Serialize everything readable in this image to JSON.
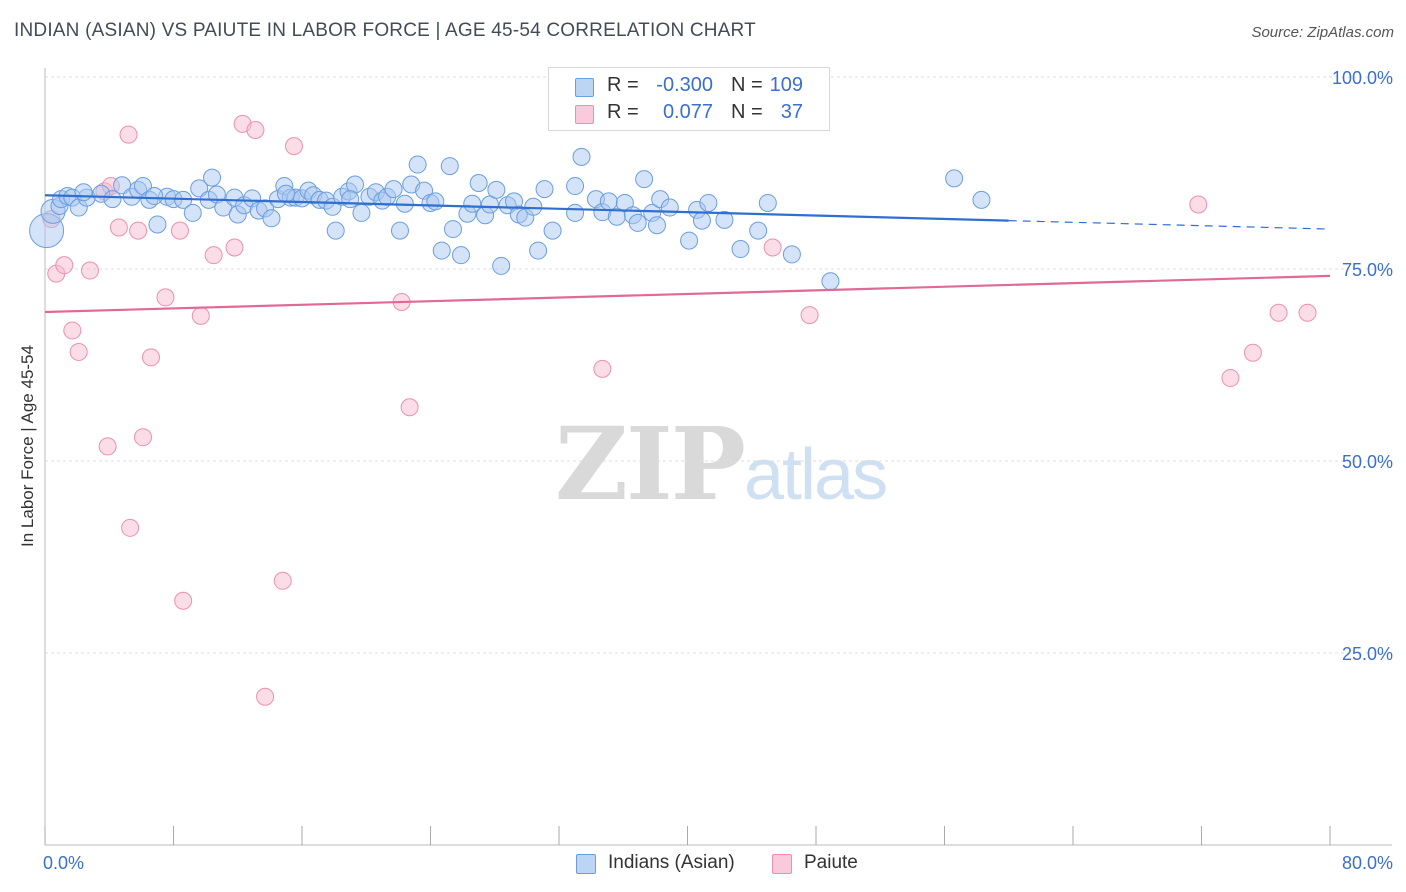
{
  "title": "INDIAN (ASIAN) VS PAIUTE IN LABOR FORCE | AGE 45-54 CORRELATION CHART",
  "source": "Source: ZipAtlas.com",
  "watermark": {
    "zip": "ZIP",
    "atlas": "atlas"
  },
  "legend": {
    "rows": [
      {
        "r_label": "R =",
        "r_value": "-0.300",
        "n_label": "N =",
        "n_value": "109"
      },
      {
        "r_label": "R =",
        "r_value": "0.077",
        "n_label": "N =",
        "n_value": "37"
      }
    ]
  },
  "bottom_legend": [
    "Indians (Asian)",
    "Paiute"
  ],
  "chart_data": {
    "type": "scatter",
    "title": "INDIAN (ASIAN) VS PAIUTE IN LABOR FORCE | AGE 45-54 CORRELATION CHART",
    "xlabel": "",
    "ylabel": "In Labor Force | Age 45-54",
    "xlim": [
      0,
      80
    ],
    "ylim": [
      0,
      100
    ],
    "x_ticks": [
      "0.0%",
      "80.0%"
    ],
    "y_ticks": [
      {
        "value": 100,
        "label": "100.0%"
      },
      {
        "value": 75,
        "label": "75.0%"
      },
      {
        "value": 50,
        "label": "50.0%"
      },
      {
        "value": 25,
        "label": "25.0%"
      }
    ],
    "grid": "horizontal dashed",
    "legend_position": "top-center",
    "colors": {
      "series1_fill": "#a9c8f0",
      "series1_stroke": "#6a9ee0",
      "series1_line": "#2f6fcf",
      "series2_fill": "#f7bcd0",
      "series2_stroke": "#ee8fb0",
      "series2_line": "#e06a95",
      "tick_label": "#3b6fce"
    },
    "series": [
      {
        "name": "Indians (Asian)",
        "trend": {
          "x0": 0,
          "y0": 84.6,
          "x1": 60,
          "y1": 81.3,
          "dash_to_x": 80,
          "dash_to_y": 80.2
        },
        "points": [
          [
            0.1,
            80.0
          ],
          [
            0.5,
            82.5
          ],
          [
            0.9,
            83.2
          ],
          [
            1.0,
            84.1
          ],
          [
            1.4,
            84.5
          ],
          [
            1.7,
            84.3
          ],
          [
            2.1,
            83.0
          ],
          [
            2.6,
            84.3
          ],
          [
            3.5,
            84.8
          ],
          [
            4.2,
            84.1
          ],
          [
            4.8,
            85.9
          ],
          [
            5.4,
            84.4
          ],
          [
            5.8,
            85.3
          ],
          [
            6.1,
            85.8
          ],
          [
            6.5,
            84.0
          ],
          [
            7.0,
            80.8
          ],
          [
            7.6,
            84.4
          ],
          [
            8.0,
            84.1
          ],
          [
            8.6,
            84.0
          ],
          [
            9.2,
            82.3
          ],
          [
            9.6,
            85.5
          ],
          [
            10.2,
            84.0
          ],
          [
            10.4,
            86.9
          ],
          [
            10.7,
            84.7
          ],
          [
            11.1,
            83.0
          ],
          [
            11.8,
            84.3
          ],
          [
            12.0,
            82.1
          ],
          [
            12.4,
            83.3
          ],
          [
            12.9,
            84.2
          ],
          [
            13.3,
            82.6
          ],
          [
            13.7,
            82.9
          ],
          [
            14.1,
            81.6
          ],
          [
            14.5,
            84.1
          ],
          [
            14.9,
            85.8
          ],
          [
            15.3,
            84.3
          ],
          [
            15.6,
            84.3
          ],
          [
            16.0,
            84.2
          ],
          [
            16.4,
            85.2
          ],
          [
            16.7,
            84.6
          ],
          [
            17.1,
            84.0
          ],
          [
            17.5,
            83.9
          ],
          [
            17.9,
            83.1
          ],
          [
            18.1,
            80.0
          ],
          [
            18.5,
            84.4
          ],
          [
            18.9,
            85.1
          ],
          [
            19.3,
            86.0
          ],
          [
            19.7,
            82.3
          ],
          [
            20.2,
            84.4
          ],
          [
            20.6,
            85.0
          ],
          [
            21.0,
            83.9
          ],
          [
            21.3,
            84.4
          ],
          [
            21.7,
            85.4
          ],
          [
            22.1,
            80.0
          ],
          [
            22.4,
            83.5
          ],
          [
            22.8,
            86.0
          ],
          [
            23.2,
            88.6
          ],
          [
            23.6,
            85.2
          ],
          [
            24.0,
            83.6
          ],
          [
            24.3,
            83.8
          ],
          [
            24.7,
            77.4
          ],
          [
            25.2,
            88.4
          ],
          [
            25.4,
            80.2
          ],
          [
            25.9,
            76.8
          ],
          [
            26.3,
            82.2
          ],
          [
            26.6,
            83.5
          ],
          [
            27.0,
            86.2
          ],
          [
            27.4,
            82.0
          ],
          [
            27.7,
            83.4
          ],
          [
            28.1,
            85.3
          ],
          [
            28.4,
            75.4
          ],
          [
            28.8,
            83.3
          ],
          [
            29.2,
            83.8
          ],
          [
            29.5,
            82.1
          ],
          [
            29.9,
            81.7
          ],
          [
            30.4,
            83.1
          ],
          [
            30.7,
            77.4
          ],
          [
            31.1,
            85.4
          ],
          [
            31.6,
            80.0
          ],
          [
            33.0,
            85.8
          ],
          [
            33.0,
            82.3
          ],
          [
            33.4,
            89.6
          ],
          [
            34.3,
            84.1
          ],
          [
            34.7,
            82.4
          ],
          [
            35.1,
            83.8
          ],
          [
            35.6,
            81.8
          ],
          [
            36.1,
            83.6
          ],
          [
            36.6,
            82.0
          ],
          [
            36.9,
            81.0
          ],
          [
            37.3,
            86.7
          ],
          [
            37.8,
            82.3
          ],
          [
            38.1,
            80.7
          ],
          [
            38.3,
            84.1
          ],
          [
            38.9,
            83.0
          ],
          [
            40.1,
            78.7
          ],
          [
            40.6,
            82.7
          ],
          [
            40.9,
            81.3
          ],
          [
            41.3,
            83.6
          ],
          [
            42.3,
            81.4
          ],
          [
            43.3,
            77.6
          ],
          [
            44.4,
            80.0
          ],
          [
            45.0,
            83.6
          ],
          [
            46.5,
            76.9
          ],
          [
            48.9,
            73.4
          ],
          [
            56.6,
            86.8
          ],
          [
            58.3,
            84.0
          ],
          [
            2.4,
            85.0
          ],
          [
            6.8,
            84.5
          ],
          [
            15.0,
            84.8
          ],
          [
            19.0,
            84.1
          ]
        ]
      },
      {
        "name": "Paiute",
        "trend": {
          "x0": 0,
          "y0": 69.4,
          "x1": 80,
          "y1": 74.1
        },
        "points": [
          [
            0.4,
            81.5
          ],
          [
            0.7,
            74.4
          ],
          [
            1.2,
            75.5
          ],
          [
            1.7,
            67.0
          ],
          [
            2.1,
            64.2
          ],
          [
            2.8,
            74.8
          ],
          [
            3.7,
            85.1
          ],
          [
            3.9,
            51.9
          ],
          [
            4.1,
            85.8
          ],
          [
            4.6,
            80.4
          ],
          [
            5.2,
            92.5
          ],
          [
            5.3,
            41.3
          ],
          [
            5.8,
            80.0
          ],
          [
            6.1,
            53.1
          ],
          [
            6.6,
            63.5
          ],
          [
            7.5,
            71.3
          ],
          [
            8.4,
            80.0
          ],
          [
            8.6,
            31.8
          ],
          [
            9.7,
            68.9
          ],
          [
            10.5,
            76.8
          ],
          [
            11.8,
            77.8
          ],
          [
            12.3,
            93.9
          ],
          [
            13.1,
            93.1
          ],
          [
            13.7,
            19.3
          ],
          [
            14.8,
            34.4
          ],
          [
            15.5,
            91.0
          ],
          [
            22.2,
            70.7
          ],
          [
            22.7,
            57.0
          ],
          [
            34.7,
            62.0
          ],
          [
            45.3,
            77.8
          ],
          [
            47.6,
            69.0
          ],
          [
            71.8,
            83.4
          ],
          [
            73.8,
            60.8
          ],
          [
            75.2,
            64.1
          ],
          [
            76.8,
            69.3
          ],
          [
            78.6,
            69.3
          ],
          [
            45.0,
            100.0
          ]
        ]
      }
    ]
  }
}
